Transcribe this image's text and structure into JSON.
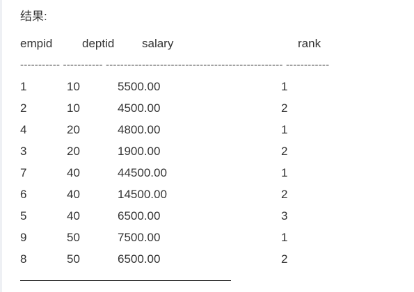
{
  "caption": "结果:",
  "columns": {
    "empid": "empid",
    "deptid": "deptid",
    "salary": "salary",
    "rank": "rank"
  },
  "separator": "----------- ----------- ------------------------------------------------- ------------",
  "rows": [
    {
      "empid": "1",
      "deptid": "10",
      "salary": "5500.00",
      "rank": "1"
    },
    {
      "empid": "2",
      "deptid": "10",
      "salary": "4500.00",
      "rank": "2"
    },
    {
      "empid": "4",
      "deptid": "20",
      "salary": "4800.00",
      "rank": "1"
    },
    {
      "empid": "3",
      "deptid": "20",
      "salary": "1900.00",
      "rank": "2"
    },
    {
      "empid": "7",
      "deptid": "40",
      "salary": "44500.00",
      "rank": "1"
    },
    {
      "empid": "6",
      "deptid": "40",
      "salary": "14500.00",
      "rank": "2"
    },
    {
      "empid": "5",
      "deptid": "40",
      "salary": "6500.00",
      "rank": "3"
    },
    {
      "empid": "9",
      "deptid": "50",
      "salary": "7500.00",
      "rank": "1"
    },
    {
      "empid": "8",
      "deptid": "50",
      "salary": "6500.00",
      "rank": "2"
    }
  ]
}
